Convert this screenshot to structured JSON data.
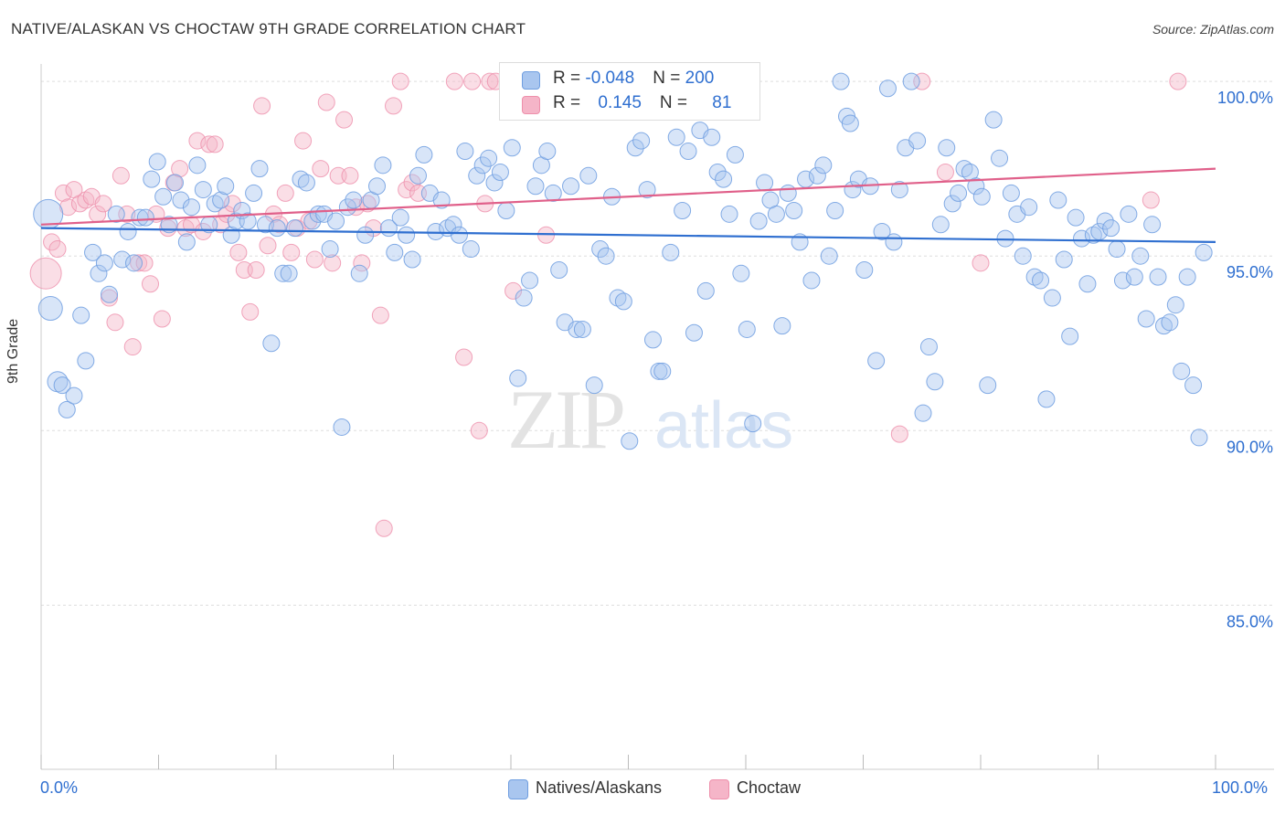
{
  "header": {
    "title": "NATIVE/ALASKAN VS CHOCTAW 9TH GRADE CORRELATION CHART",
    "source": "Source: ZipAtlas.com"
  },
  "legend": {
    "row1": {
      "r_label": "R = ",
      "r_value": "-0.048",
      "n_label": "N = ",
      "n_value": "200"
    },
    "row2": {
      "r_label": "R = ",
      "r_value": "0.145",
      "n_label": "N = ",
      "n_value": "81"
    }
  },
  "bottom_legend": {
    "series1": "Natives/Alaskans",
    "series2": "Choctaw"
  },
  "colors": {
    "blue_fill": "#a9c6ef",
    "blue_stroke": "#6f9ee0",
    "blue_line": "#2f6fd0",
    "pink_fill": "#f5b5c8",
    "pink_stroke": "#ee8fab",
    "pink_line": "#e0608a",
    "axis_text": "#2f6fd0",
    "grid": "#dddddd"
  },
  "chart_data": {
    "type": "scatter",
    "title": "NATIVE/ALASKAN VS CHOCTAW 9TH GRADE CORRELATION CHART",
    "xlabel": "",
    "ylabel": "9th Grade",
    "xlim": [
      0,
      100
    ],
    "ylim": [
      80.3,
      100.5
    ],
    "x_tick_labels": [
      "0.0%",
      "100.0%"
    ],
    "y_ticks": [
      85,
      90,
      95,
      100
    ],
    "y_tick_labels": [
      "85.0%",
      "90.0%",
      "95.0%",
      "100.0%"
    ],
    "grid": true,
    "legend_position": "top-center",
    "watermark": "ZIPatlas",
    "trend_lines": [
      {
        "series": "Natives/Alaskans",
        "x": [
          0,
          100
        ],
        "y": [
          95.8,
          95.4
        ]
      },
      {
        "series": "Choctaw",
        "x": [
          0,
          100
        ],
        "y": [
          95.9,
          97.5
        ]
      }
    ],
    "series": [
      {
        "name": "Natives/Alaskans",
        "r": -0.048,
        "n": 200,
        "points": [
          [
            0.6,
            96.2
          ],
          [
            0.8,
            93.5
          ],
          [
            1.4,
            91.4
          ],
          [
            1.8,
            91.3
          ],
          [
            2.2,
            90.6
          ],
          [
            2.8,
            91.0
          ],
          [
            3.4,
            93.3
          ],
          [
            3.8,
            92.0
          ],
          [
            4.4,
            95.1
          ],
          [
            4.9,
            94.5
          ],
          [
            5.4,
            94.8
          ],
          [
            5.8,
            93.9
          ],
          [
            6.4,
            96.2
          ],
          [
            6.9,
            94.9
          ],
          [
            7.4,
            95.7
          ],
          [
            7.9,
            94.8
          ],
          [
            8.4,
            96.1
          ],
          [
            8.9,
            96.1
          ],
          [
            9.4,
            97.2
          ],
          [
            9.9,
            97.7
          ],
          [
            10.4,
            96.7
          ],
          [
            10.9,
            95.9
          ],
          [
            11.4,
            97.1
          ],
          [
            11.9,
            96.6
          ],
          [
            12.4,
            95.4
          ],
          [
            12.8,
            96.4
          ],
          [
            13.3,
            97.6
          ],
          [
            13.8,
            96.9
          ],
          [
            14.3,
            95.9
          ],
          [
            14.8,
            96.5
          ],
          [
            15.3,
            96.6
          ],
          [
            15.7,
            97.0
          ],
          [
            16.2,
            95.6
          ],
          [
            16.6,
            96.0
          ],
          [
            17.1,
            96.3
          ],
          [
            17.6,
            96.0
          ],
          [
            18.1,
            96.8
          ],
          [
            18.6,
            97.5
          ],
          [
            19.1,
            95.9
          ],
          [
            19.6,
            92.5
          ],
          [
            20.1,
            95.8
          ],
          [
            20.6,
            94.5
          ],
          [
            21.1,
            94.5
          ],
          [
            21.6,
            95.8
          ],
          [
            22.1,
            97.2
          ],
          [
            22.6,
            97.1
          ],
          [
            23.1,
            96.0
          ],
          [
            23.6,
            96.2
          ],
          [
            24.1,
            96.2
          ],
          [
            24.6,
            95.2
          ],
          [
            25.1,
            96.0
          ],
          [
            25.6,
            90.1
          ],
          [
            26.1,
            96.4
          ],
          [
            26.6,
            96.6
          ],
          [
            27.1,
            94.5
          ],
          [
            27.6,
            95.6
          ],
          [
            28.1,
            96.6
          ],
          [
            28.6,
            97.0
          ],
          [
            29.1,
            97.6
          ],
          [
            29.6,
            95.8
          ],
          [
            30.1,
            95.1
          ],
          [
            30.6,
            96.1
          ],
          [
            31.1,
            95.6
          ],
          [
            31.6,
            94.9
          ],
          [
            32.1,
            97.3
          ],
          [
            32.6,
            97.9
          ],
          [
            33.1,
            96.8
          ],
          [
            33.6,
            95.7
          ],
          [
            34.1,
            96.6
          ],
          [
            34.6,
            95.8
          ],
          [
            35.1,
            95.9
          ],
          [
            35.6,
            95.6
          ],
          [
            36.1,
            98.0
          ],
          [
            36.6,
            95.2
          ],
          [
            37.1,
            97.3
          ],
          [
            37.6,
            97.6
          ],
          [
            38.1,
            97.8
          ],
          [
            38.6,
            97.1
          ],
          [
            39.1,
            97.4
          ],
          [
            39.6,
            96.3
          ],
          [
            40.1,
            98.1
          ],
          [
            40.6,
            91.5
          ],
          [
            41.1,
            93.8
          ],
          [
            41.6,
            94.3
          ],
          [
            42.1,
            97.0
          ],
          [
            42.6,
            97.6
          ],
          [
            43.1,
            98.0
          ],
          [
            43.6,
            96.8
          ],
          [
            44.1,
            94.6
          ],
          [
            44.6,
            93.1
          ],
          [
            45.1,
            97.0
          ],
          [
            45.6,
            92.9
          ],
          [
            46.1,
            92.9
          ],
          [
            46.6,
            97.3
          ],
          [
            47.1,
            91.3
          ],
          [
            47.6,
            95.2
          ],
          [
            48.1,
            95.0
          ],
          [
            48.6,
            96.7
          ],
          [
            49.1,
            93.8
          ],
          [
            49.6,
            93.7
          ],
          [
            50.1,
            89.7
          ],
          [
            50.6,
            98.1
          ],
          [
            51.1,
            98.3
          ],
          [
            51.6,
            96.9
          ],
          [
            52.1,
            92.6
          ],
          [
            52.6,
            91.7
          ],
          [
            52.9,
            91.7
          ],
          [
            53.6,
            95.1
          ],
          [
            54.1,
            98.4
          ],
          [
            54.6,
            96.3
          ],
          [
            55.1,
            98.0
          ],
          [
            55.6,
            92.8
          ],
          [
            56.1,
            98.6
          ],
          [
            56.6,
            94.0
          ],
          [
            57.1,
            98.4
          ],
          [
            57.6,
            97.4
          ],
          [
            58.1,
            97.2
          ],
          [
            58.6,
            96.2
          ],
          [
            59.1,
            97.9
          ],
          [
            59.6,
            94.5
          ],
          [
            60.1,
            92.9
          ],
          [
            60.6,
            90.2
          ],
          [
            61.1,
            96.0
          ],
          [
            61.6,
            97.1
          ],
          [
            62.1,
            96.6
          ],
          [
            62.6,
            96.2
          ],
          [
            63.1,
            93.0
          ],
          [
            63.6,
            96.8
          ],
          [
            64.1,
            96.3
          ],
          [
            64.6,
            95.4
          ],
          [
            65.1,
            97.2
          ],
          [
            65.6,
            94.3
          ],
          [
            66.1,
            97.3
          ],
          [
            66.6,
            97.6
          ],
          [
            67.1,
            95.0
          ],
          [
            67.6,
            96.3
          ],
          [
            68.1,
            100.0
          ],
          [
            68.6,
            99.0
          ],
          [
            68.9,
            98.8
          ],
          [
            69.1,
            96.9
          ],
          [
            69.6,
            97.2
          ],
          [
            70.1,
            94.6
          ],
          [
            70.6,
            97.0
          ],
          [
            71.1,
            92.0
          ],
          [
            71.6,
            95.7
          ],
          [
            72.1,
            99.8
          ],
          [
            72.6,
            95.4
          ],
          [
            73.1,
            96.9
          ],
          [
            73.6,
            98.1
          ],
          [
            74.1,
            100.0
          ],
          [
            74.6,
            98.3
          ],
          [
            75.1,
            90.5
          ],
          [
            75.6,
            92.4
          ],
          [
            76.1,
            91.4
          ],
          [
            76.6,
            95.9
          ],
          [
            77.1,
            98.1
          ],
          [
            77.6,
            96.5
          ],
          [
            78.1,
            96.8
          ],
          [
            78.6,
            97.5
          ],
          [
            79.1,
            97.4
          ],
          [
            79.6,
            97.0
          ],
          [
            80.1,
            96.7
          ],
          [
            80.6,
            91.3
          ],
          [
            81.1,
            98.9
          ],
          [
            81.6,
            97.8
          ],
          [
            82.1,
            95.5
          ],
          [
            82.6,
            96.8
          ],
          [
            83.1,
            96.2
          ],
          [
            83.6,
            95.0
          ],
          [
            84.1,
            96.4
          ],
          [
            84.6,
            94.4
          ],
          [
            85.1,
            94.3
          ],
          [
            85.6,
            90.9
          ],
          [
            86.1,
            93.8
          ],
          [
            86.6,
            96.6
          ],
          [
            87.1,
            94.9
          ],
          [
            87.6,
            92.7
          ],
          [
            88.1,
            96.1
          ],
          [
            88.6,
            95.5
          ],
          [
            89.1,
            94.2
          ],
          [
            89.6,
            95.6
          ],
          [
            90.1,
            95.7
          ],
          [
            90.6,
            96.0
          ],
          [
            91.1,
            95.8
          ],
          [
            91.6,
            95.2
          ],
          [
            92.1,
            94.3
          ],
          [
            92.6,
            96.2
          ],
          [
            93.1,
            94.4
          ],
          [
            93.6,
            95.0
          ],
          [
            94.1,
            93.2
          ],
          [
            94.6,
            95.9
          ],
          [
            95.1,
            94.4
          ],
          [
            95.6,
            93.0
          ],
          [
            96.1,
            93.1
          ],
          [
            96.6,
            93.6
          ],
          [
            97.1,
            91.7
          ],
          [
            97.6,
            94.4
          ],
          [
            98.1,
            91.3
          ],
          [
            98.6,
            89.8
          ],
          [
            99.0,
            95.1
          ]
        ]
      },
      {
        "name": "Choctaw",
        "r": 0.145,
        "n": 81,
        "points": [
          [
            0.4,
            94.5
          ],
          [
            0.9,
            95.4
          ],
          [
            1.4,
            95.2
          ],
          [
            1.9,
            96.8
          ],
          [
            2.3,
            96.4
          ],
          [
            2.8,
            96.9
          ],
          [
            3.3,
            96.5
          ],
          [
            3.8,
            96.6
          ],
          [
            4.3,
            96.7
          ],
          [
            4.8,
            96.2
          ],
          [
            5.3,
            96.5
          ],
          [
            5.8,
            93.8
          ],
          [
            6.3,
            93.1
          ],
          [
            6.8,
            97.3
          ],
          [
            7.3,
            96.2
          ],
          [
            7.8,
            92.4
          ],
          [
            8.3,
            94.8
          ],
          [
            8.8,
            94.8
          ],
          [
            9.3,
            94.2
          ],
          [
            9.8,
            96.2
          ],
          [
            10.3,
            93.2
          ],
          [
            10.8,
            95.8
          ],
          [
            11.3,
            97.1
          ],
          [
            11.8,
            97.5
          ],
          [
            12.3,
            95.8
          ],
          [
            12.8,
            95.9
          ],
          [
            13.3,
            98.3
          ],
          [
            13.8,
            95.7
          ],
          [
            14.3,
            98.2
          ],
          [
            14.8,
            98.2
          ],
          [
            15.3,
            95.9
          ],
          [
            15.8,
            96.2
          ],
          [
            16.3,
            96.5
          ],
          [
            16.8,
            95.1
          ],
          [
            17.3,
            94.6
          ],
          [
            17.8,
            93.4
          ],
          [
            18.3,
            94.6
          ],
          [
            18.8,
            99.3
          ],
          [
            19.3,
            95.3
          ],
          [
            19.8,
            96.2
          ],
          [
            20.3,
            95.9
          ],
          [
            20.8,
            96.8
          ],
          [
            21.3,
            95.1
          ],
          [
            21.8,
            95.8
          ],
          [
            22.3,
            98.3
          ],
          [
            22.8,
            96.0
          ],
          [
            23.3,
            94.9
          ],
          [
            23.8,
            97.5
          ],
          [
            24.3,
            99.4
          ],
          [
            24.8,
            94.8
          ],
          [
            25.3,
            97.3
          ],
          [
            25.8,
            98.9
          ],
          [
            26.3,
            97.3
          ],
          [
            26.8,
            96.4
          ],
          [
            27.3,
            94.8
          ],
          [
            27.8,
            96.5
          ],
          [
            28.3,
            95.8
          ],
          [
            28.9,
            93.3
          ],
          [
            29.2,
            87.2
          ],
          [
            30.0,
            99.3
          ],
          [
            30.6,
            100.0
          ],
          [
            31.1,
            96.9
          ],
          [
            31.6,
            97.1
          ],
          [
            32.1,
            96.8
          ],
          [
            35.2,
            100.0
          ],
          [
            36.0,
            92.1
          ],
          [
            36.7,
            100.0
          ],
          [
            37.3,
            90.0
          ],
          [
            37.8,
            96.5
          ],
          [
            38.2,
            100.0
          ],
          [
            38.7,
            100.0
          ],
          [
            40.2,
            94.0
          ],
          [
            40.6,
            100.0
          ],
          [
            43.0,
            95.6
          ],
          [
            45.0,
            100.0
          ],
          [
            73.1,
            89.9
          ],
          [
            75.0,
            100.0
          ],
          [
            77.0,
            97.4
          ],
          [
            80.0,
            94.8
          ],
          [
            94.5,
            96.6
          ],
          [
            96.8,
            100.0
          ]
        ]
      }
    ]
  }
}
